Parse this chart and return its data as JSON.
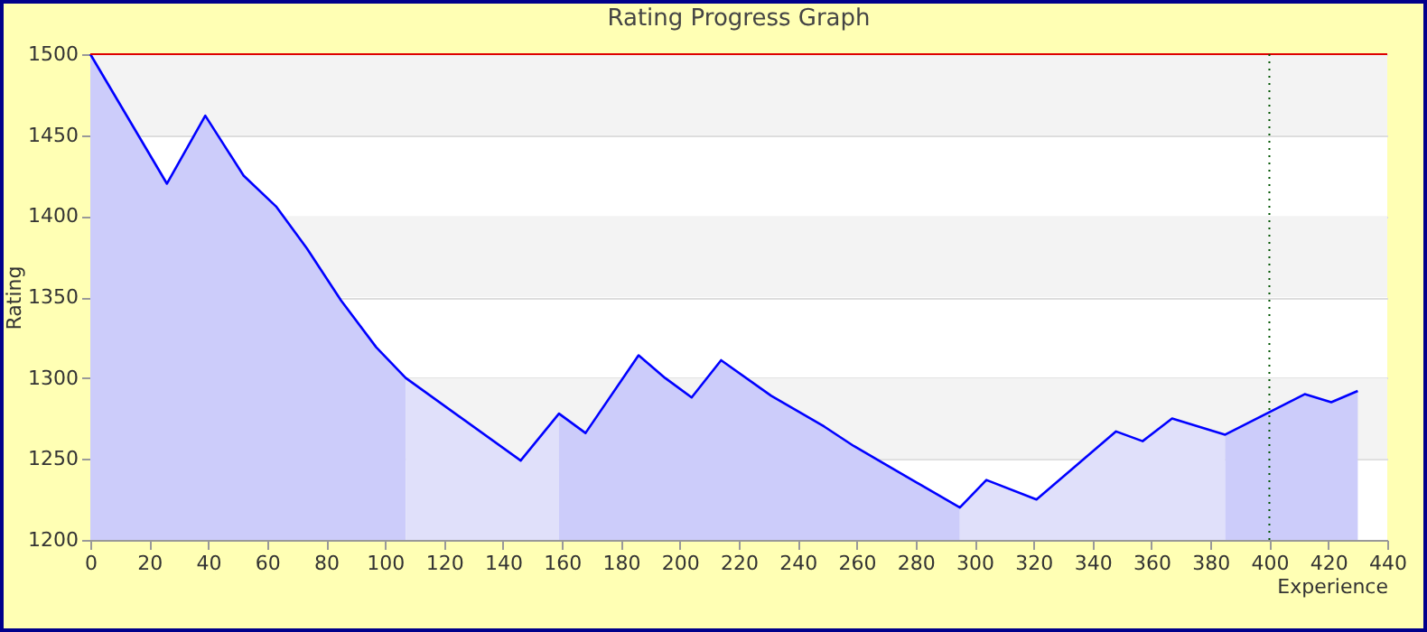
{
  "chart_data": {
    "type": "area",
    "title": "Rating Progress Graph",
    "xlabel": "Experience",
    "ylabel": "Rating",
    "xlim": [
      0,
      440
    ],
    "xticks": [
      0,
      20,
      40,
      60,
      80,
      100,
      120,
      140,
      160,
      180,
      200,
      220,
      240,
      260,
      280,
      300,
      320,
      340,
      360,
      380,
      400,
      420,
      440
    ],
    "ylim": [
      1200,
      1500
    ],
    "yticks": [
      1200,
      1250,
      1300,
      1350,
      1400,
      1450,
      1500
    ],
    "grid": "y",
    "bands": [
      {
        "axis": "y",
        "from": 1250,
        "to": 1300,
        "color": "#f3f3f3"
      },
      {
        "axis": "y",
        "from": 1350,
        "to": 1400,
        "color": "#f3f3f3"
      },
      {
        "axis": "y",
        "from": 1450,
        "to": 1500,
        "color": "#f3f3f3"
      }
    ],
    "ref_lines": [
      {
        "axis": "y",
        "value": 1500,
        "color": "#dd0000",
        "line_style": "solid"
      },
      {
        "axis": "x",
        "value": 400,
        "color": "#005500",
        "line_style": "dotted"
      }
    ],
    "series": [
      {
        "color": "#ccccfa",
        "x": [
          0,
          26,
          39,
          52,
          63,
          73.5,
          85,
          97,
          107
        ],
        "values": [
          1500,
          1420,
          1462,
          1425,
          1406,
          1380,
          1348,
          1319,
          1300
        ]
      },
      {
        "color": "#e0e0fa",
        "x": [
          107,
          146,
          159
        ],
        "values": [
          1300,
          1249,
          1278
        ]
      },
      {
        "color": "#ccccfa",
        "x": [
          159,
          168,
          186,
          195,
          204,
          214,
          231,
          249,
          259,
          277,
          295
        ],
        "values": [
          1278,
          1266,
          1314,
          1300,
          1288,
          1311,
          1289,
          1270,
          1258,
          1239,
          1220
        ]
      },
      {
        "color": "#e0e0fa",
        "x": [
          295,
          304,
          321,
          348,
          357,
          367,
          385
        ],
        "values": [
          1220,
          1237,
          1225,
          1267,
          1261,
          1275,
          1265
        ]
      },
      {
        "color": "#ccccfa",
        "x": [
          385,
          412,
          421,
          430
        ],
        "values": [
          1265,
          1290,
          1285,
          1292
        ]
      },
      {
        "type": "line",
        "color": "#0000ff",
        "x": [
          0,
          26,
          39,
          52,
          63,
          73.5,
          85,
          97,
          107,
          146,
          159,
          168,
          186,
          195,
          204,
          214,
          231,
          249,
          259,
          277,
          295,
          304,
          321,
          348,
          357,
          367,
          385,
          412,
          421,
          430
        ],
        "values": [
          1500,
          1420,
          1462,
          1425,
          1406,
          1380,
          1348,
          1319,
          1300,
          1249,
          1278,
          1266,
          1314,
          1300,
          1288,
          1311,
          1289,
          1270,
          1258,
          1239,
          1220,
          1237,
          1225,
          1267,
          1261,
          1275,
          1265,
          1290,
          1285,
          1292
        ]
      }
    ]
  }
}
